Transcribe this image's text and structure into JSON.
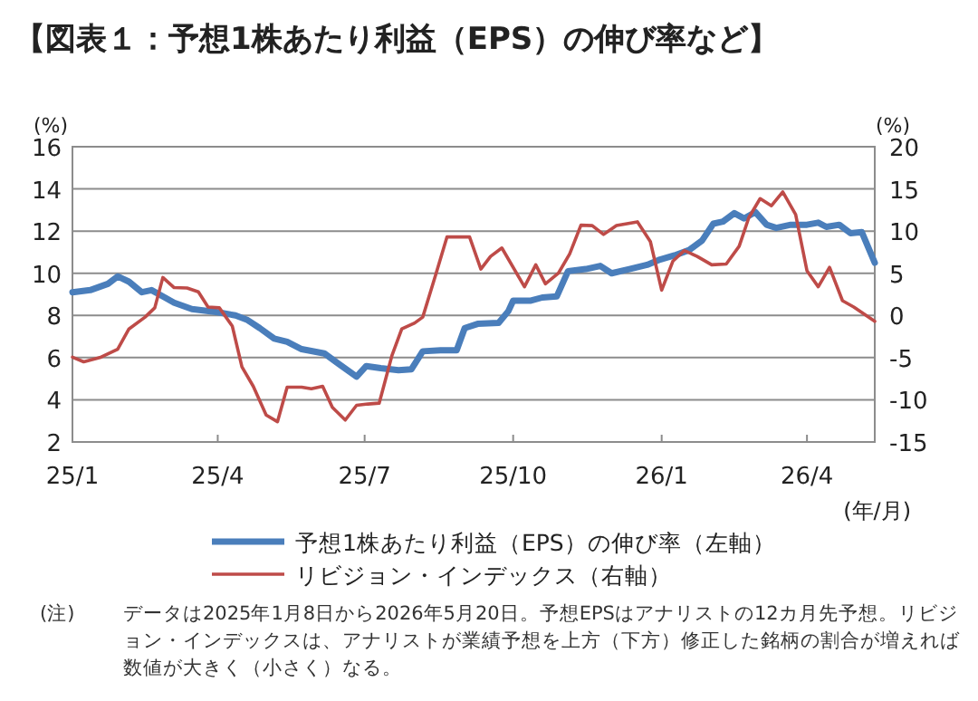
{
  "chart_data": {
    "type": "line",
    "title": "【図表１：予想1株あたり利益（EPS）の伸び率など】",
    "xlabel": "(年/月)",
    "ylabel": "(%)",
    "y2label": "(%)",
    "xlim": [
      "2025-01-01",
      "2026-05-13"
    ],
    "xticks": [
      {
        "value": "2025-01-01",
        "label": "25/1"
      },
      {
        "value": "2025-04-01",
        "label": "25/4"
      },
      {
        "value": "2025-07-01",
        "label": "25/7"
      },
      {
        "value": "2025-10-01",
        "label": "25/10"
      },
      {
        "value": "2026-01-01",
        "label": "26/1"
      },
      {
        "value": "2026-04-01",
        "label": "26/4"
      }
    ],
    "ylim": [
      2,
      16
    ],
    "yticks": [
      2,
      4,
      6,
      8,
      10,
      12,
      14,
      16
    ],
    "y2lim": [
      -15,
      20
    ],
    "y2ticks": [
      -15,
      -10,
      -5,
      0,
      5,
      10,
      15,
      20
    ],
    "grid": "y",
    "legend": "bottom",
    "line_style": "solid",
    "series": [
      {
        "name": "予想1株あたり利益（EPS）の伸び率（左軸）",
        "color": "#4a7ebb",
        "x": [
          "2025-01-01",
          "2025-01-12",
          "2025-01-23",
          "2025-01-29",
          "2025-02-05",
          "2025-02-13",
          "2025-02-19",
          "2025-02-26",
          "2025-03-05",
          "2025-03-16",
          "2025-04-01",
          "2025-04-12",
          "2025-04-19",
          "2025-04-27",
          "2025-05-06",
          "2025-05-14",
          "2025-05-23",
          "2025-06-06",
          "2025-06-15",
          "2025-06-26",
          "2025-07-02",
          "2025-07-11",
          "2025-07-22",
          "2025-07-30",
          "2025-08-06",
          "2025-08-17",
          "2025-08-27",
          "2025-09-01",
          "2025-09-09",
          "2025-09-22",
          "2025-09-28",
          "2025-10-01",
          "2025-10-12",
          "2025-10-19",
          "2025-10-28",
          "2025-11-04",
          "2025-11-15",
          "2025-11-24",
          "2025-12-01",
          "2025-12-12",
          "2025-12-23",
          "2025-12-31",
          "2026-01-09",
          "2026-01-18",
          "2026-01-26",
          "2026-02-02",
          "2026-02-08",
          "2026-02-15",
          "2026-02-21",
          "2026-02-28",
          "2026-03-07",
          "2026-03-13",
          "2026-03-22",
          "2026-04-01",
          "2026-04-08",
          "2026-04-13",
          "2026-04-21",
          "2026-04-28",
          "2026-05-05",
          "2026-05-13"
        ],
        "values": [
          9.1,
          9.2,
          9.5,
          9.85,
          9.6,
          9.1,
          9.2,
          8.9,
          8.6,
          8.3,
          8.15,
          8.0,
          7.8,
          7.4,
          6.9,
          6.75,
          6.4,
          6.2,
          5.7,
          5.1,
          5.6,
          5.5,
          5.4,
          5.45,
          6.3,
          6.35,
          6.35,
          7.4,
          7.6,
          7.65,
          8.2,
          8.7,
          8.7,
          8.85,
          8.9,
          10.1,
          10.2,
          10.35,
          10.0,
          10.2,
          10.4,
          10.65,
          10.85,
          11.1,
          11.55,
          12.35,
          12.45,
          12.85,
          12.6,
          12.9,
          12.3,
          12.15,
          12.3,
          12.3,
          12.4,
          12.2,
          12.3,
          11.9,
          11.95,
          10.5
        ]
      },
      {
        "name": "リビジョン・インデックス（右軸）",
        "color": "#be4b48",
        "axis": "y2",
        "x": [
          "2025-01-01",
          "2025-01-08",
          "2025-01-18",
          "2025-01-29",
          "2025-02-05",
          "2025-02-15",
          "2025-02-21",
          "2025-02-26",
          "2025-03-05",
          "2025-03-13",
          "2025-03-20",
          "2025-03-26",
          "2025-04-02",
          "2025-04-10",
          "2025-04-16",
          "2025-04-23",
          "2025-05-01",
          "2025-05-08",
          "2025-05-14",
          "2025-05-23",
          "2025-05-29",
          "2025-06-05",
          "2025-06-11",
          "2025-06-19",
          "2025-06-26",
          "2025-07-03",
          "2025-07-10",
          "2025-07-18",
          "2025-07-24",
          "2025-08-01",
          "2025-08-06",
          "2025-08-14",
          "2025-08-21",
          "2025-09-04",
          "2025-09-11",
          "2025-09-17",
          "2025-09-24",
          "2025-10-08",
          "2025-10-15",
          "2025-10-21",
          "2025-10-29",
          "2025-11-05",
          "2025-11-12",
          "2025-11-19",
          "2025-11-26",
          "2025-12-04",
          "2025-12-17",
          "2025-12-25",
          "2026-01-01",
          "2026-01-08",
          "2026-01-15",
          "2026-01-23",
          "2026-02-01",
          "2026-02-10",
          "2026-02-18",
          "2026-02-24",
          "2026-03-03",
          "2026-03-10",
          "2026-03-17",
          "2026-03-25",
          "2026-04-01",
          "2026-04-08",
          "2026-04-15",
          "2026-04-23",
          "2026-04-30",
          "2026-05-13"
        ],
        "values": [
          -4.95,
          -5.5,
          -5.0,
          -4.0,
          -1.6,
          -0.2,
          0.9,
          4.5,
          3.3,
          3.25,
          2.8,
          1.0,
          0.9,
          -1.25,
          -6.1,
          -8.4,
          -11.8,
          -12.6,
          -8.5,
          -8.5,
          -8.7,
          -8.4,
          -10.9,
          -12.4,
          -10.65,
          -10.5,
          -10.4,
          -4.7,
          -1.6,
          -0.9,
          -0.2,
          4.8,
          9.3,
          9.3,
          5.5,
          7.0,
          8.0,
          3.4,
          6.0,
          3.75,
          5.0,
          7.3,
          10.7,
          10.65,
          9.6,
          10.65,
          11.1,
          8.75,
          3.0,
          6.45,
          7.7,
          7.0,
          6.0,
          6.1,
          8.2,
          11.6,
          13.85,
          13.0,
          14.65,
          11.95,
          5.3,
          3.4,
          5.7,
          1.75,
          1.0,
          -0.7
        ]
      }
    ],
    "annotations": [
      "(注)",
      "データは2025年1月8日から2026年5月20日。予想EPSはアナリストの12カ月先予想。リビジョン・インデックスは、アナリストが業績予想を上方（下方）修正した銘柄の割合が増えれば数値が大きく（小さく）なる。"
    ]
  }
}
